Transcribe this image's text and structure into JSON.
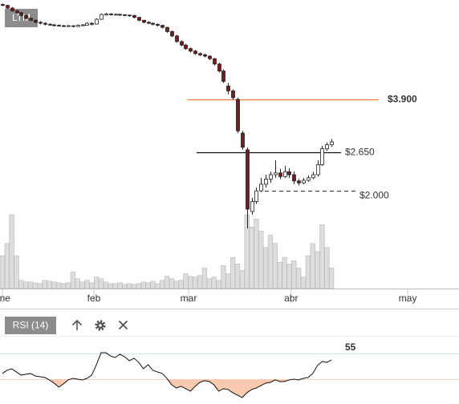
{
  "chart_data": {
    "type": "candlestick",
    "range_button": "LTM",
    "log_scale": true,
    "ylim": [
      0.98,
      8.06
    ],
    "xlim": [
      -0.5,
      97.1
    ],
    "xticks": [
      {
        "value": 0,
        "label": "ene"
      },
      {
        "value": 19.45,
        "label": "feb"
      },
      {
        "value": 39.6,
        "label": "mar"
      },
      {
        "value": 61.4,
        "label": "abr"
      },
      {
        "value": 86.2,
        "label": "may"
      }
    ],
    "colors": {
      "up": "#ffffff",
      "down": "#7b1c1c",
      "outline": "#222222",
      "volume": "#dddddd",
      "volume_edge": "#b5b5b5"
    },
    "open": [
      7.8,
      7.75,
      7.6,
      7.45,
      7.35,
      7.2,
      7.05,
      6.95,
      6.85,
      6.8,
      6.75,
      6.72,
      6.7,
      6.68,
      6.64,
      6.68,
      6.64,
      6.68,
      6.7,
      6.8,
      6.76,
      7.0,
      7.22,
      7.28,
      7.24,
      7.26,
      7.24,
      7.22,
      7.2,
      7.1,
      6.95,
      6.85,
      6.8,
      6.75,
      6.7,
      6.6,
      6.4,
      6.2,
      5.95,
      5.8,
      5.65,
      5.55,
      5.45,
      5.4,
      5.35,
      5.25,
      5.05,
      4.8,
      4.3,
      4.15,
      3.9,
      3.05,
      2.7,
      1.72,
      1.85,
      2.0,
      2.1,
      2.18,
      2.25,
      2.28,
      2.22,
      2.3,
      2.25,
      2.15,
      2.12,
      2.16,
      2.2,
      2.25,
      2.42,
      2.72,
      2.8
    ],
    "high": [
      7.85,
      7.78,
      7.65,
      7.5,
      7.38,
      7.25,
      7.1,
      7.0,
      6.9,
      6.85,
      6.8,
      6.76,
      6.74,
      6.72,
      6.72,
      6.7,
      6.74,
      6.76,
      6.85,
      6.84,
      7.05,
      7.3,
      7.34,
      7.32,
      7.3,
      7.28,
      7.26,
      7.24,
      7.22,
      7.12,
      6.98,
      6.9,
      6.84,
      6.78,
      6.72,
      6.62,
      6.45,
      6.25,
      6.0,
      5.85,
      5.7,
      5.6,
      5.5,
      5.45,
      5.38,
      5.28,
      5.1,
      4.85,
      4.4,
      4.2,
      3.95,
      3.1,
      2.75,
      1.9,
      2.05,
      2.2,
      2.25,
      2.3,
      2.5,
      2.35,
      2.4,
      2.36,
      2.3,
      2.18,
      2.2,
      2.24,
      2.3,
      2.5,
      2.78,
      2.85,
      2.92
    ],
    "low": [
      7.7,
      7.55,
      7.4,
      7.3,
      7.15,
      7.0,
      6.9,
      6.8,
      6.75,
      6.7,
      6.68,
      6.65,
      6.63,
      6.62,
      6.62,
      6.6,
      6.62,
      6.66,
      6.68,
      6.7,
      6.74,
      6.98,
      7.2,
      7.2,
      7.2,
      7.18,
      7.16,
      7.14,
      7.05,
      6.9,
      6.8,
      6.76,
      6.7,
      6.65,
      6.55,
      6.35,
      6.15,
      5.9,
      5.75,
      5.6,
      5.5,
      5.4,
      5.35,
      5.3,
      5.2,
      5.0,
      4.75,
      4.4,
      4.05,
      3.9,
      3.05,
      2.7,
      1.52,
      1.68,
      1.82,
      1.98,
      2.05,
      2.12,
      2.2,
      2.18,
      2.2,
      2.2,
      2.1,
      2.08,
      2.1,
      2.14,
      2.18,
      2.22,
      2.4,
      2.68,
      2.76
    ],
    "close": [
      7.75,
      7.6,
      7.45,
      7.35,
      7.2,
      7.05,
      6.95,
      6.85,
      6.8,
      6.75,
      6.72,
      6.7,
      6.68,
      6.66,
      6.68,
      6.65,
      6.7,
      6.72,
      6.8,
      6.75,
      7.0,
      7.25,
      7.28,
      7.25,
      7.26,
      7.24,
      7.22,
      7.2,
      7.1,
      6.95,
      6.85,
      6.8,
      6.75,
      6.7,
      6.6,
      6.4,
      6.2,
      5.95,
      5.8,
      5.65,
      5.55,
      5.45,
      5.4,
      5.35,
      5.25,
      5.05,
      4.8,
      4.45,
      4.15,
      3.95,
      3.1,
      2.75,
      1.75,
      1.85,
      2.0,
      2.1,
      2.18,
      2.25,
      2.28,
      2.22,
      2.3,
      2.25,
      2.15,
      2.12,
      2.16,
      2.2,
      2.25,
      2.42,
      2.72,
      2.8,
      2.86
    ],
    "volume": [
      40,
      55,
      90,
      40,
      10,
      8,
      8,
      7,
      6,
      10,
      9,
      8,
      7,
      6,
      7,
      20,
      12,
      8,
      10,
      7,
      14,
      12,
      8,
      6,
      6,
      7,
      5,
      6,
      5,
      6,
      8,
      7,
      9,
      6,
      10,
      15,
      12,
      9,
      10,
      18,
      15,
      14,
      16,
      25,
      12,
      14,
      10,
      28,
      18,
      38,
      30,
      22,
      90,
      75,
      85,
      70,
      50,
      65,
      55,
      32,
      38,
      30,
      34,
      25,
      14,
      40,
      55,
      45,
      78,
      50,
      25
    ],
    "price_lines": [
      {
        "value": 3.9,
        "label": "$3.900",
        "color": "#f07838",
        "dashed": false
      },
      {
        "value": 2.65,
        "label": "$2.650",
        "color": "#111111",
        "dashed": false
      },
      {
        "value": 2.0,
        "label": "$2.000",
        "color": "#444444",
        "dashed": true
      }
    ],
    "indicator": {
      "label": "RSI (14)",
      "color": "#111111",
      "area_color": "#f9c9b0",
      "label_color": "#4a6fa5",
      "ylim": [
        20.6,
        74.4
      ],
      "levels": [
        {
          "value": 60,
          "color": "#c4e3ec"
        },
        {
          "value": 40,
          "color": "#f7d2bb"
        }
      ],
      "values": [
        44.4,
        46.9,
        48.1,
        45.6,
        43.1,
        43.8,
        44.4,
        42.5,
        41.9,
        41.3,
        39.4,
        36.9,
        33.8,
        36.3,
        39.4,
        40.6,
        40,
        39.4,
        40.6,
        43.1,
        51.3,
        60.6,
        60.6,
        58.1,
        56.9,
        59.4,
        57.5,
        54.4,
        56.3,
        53.1,
        48.1,
        51.3,
        46.9,
        45.6,
        44.4,
        40.6,
        35.6,
        33.1,
        34.4,
        32.5,
        30.6,
        34.4,
        37.5,
        38.8,
        38.1,
        35.6,
        30.6,
        32.5,
        31.9,
        29.4,
        27.5,
        25.6,
        29.4,
        31.9,
        33.1,
        35,
        36.9,
        37.5,
        39.4,
        38.1,
        38.1,
        39.4,
        40,
        39.4,
        40.6,
        41.3,
        44.4,
        50.6,
        53.8,
        53.1,
        55
      ]
    }
  }
}
